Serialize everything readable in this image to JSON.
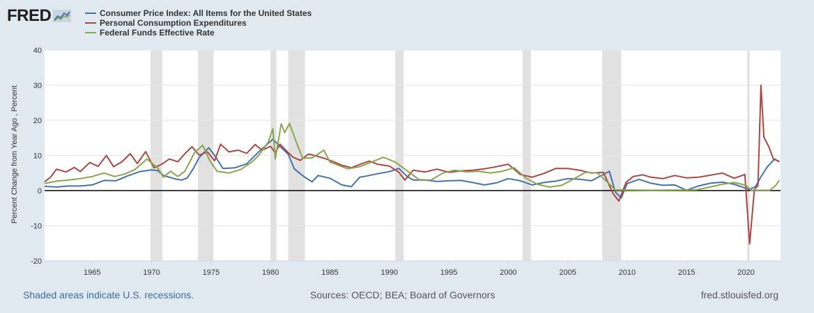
{
  "logo": {
    "text": "FRED"
  },
  "legend": {
    "items": [
      {
        "label": "Consumer Price Index: All Items for the United States",
        "color": "#4572a7"
      },
      {
        "label": "Personal Consumption Expenditures",
        "color": "#aa4643"
      },
      {
        "label": "Federal Funds Effective Rate",
        "color": "#89a54e"
      }
    ]
  },
  "footer": {
    "recessions_note": "Shaded areas indicate U.S. recessions.",
    "sources": "Sources: OECD; BEA; Board of Governors",
    "site": "fred.stlouisfed.org"
  },
  "chart_data": {
    "type": "line",
    "ylabel": "Percent Change from Year Ago , Percent",
    "xlim": [
      1961.0,
      2022.9
    ],
    "ylim": [
      -20,
      40
    ],
    "yticks": [
      -20,
      -10,
      0,
      10,
      20,
      30,
      40
    ],
    "xticks": [
      1965,
      1970,
      1975,
      1980,
      1985,
      1990,
      1995,
      2000,
      2005,
      2010,
      2015,
      2020
    ],
    "zero_line": true,
    "grid": "horizontal",
    "recessions": [
      [
        1969.9,
        1970.9
      ],
      [
        1973.9,
        1975.2
      ],
      [
        1980.0,
        1980.5
      ],
      [
        1981.5,
        1982.9
      ],
      [
        1990.5,
        1991.2
      ],
      [
        2001.2,
        2001.9
      ],
      [
        2007.9,
        2009.5
      ],
      [
        2020.1,
        2020.3
      ]
    ],
    "series": [
      {
        "name": "Consumer Price Index: All Items for the United States",
        "color": "#4572a7",
        "points": [
          [
            1961.0,
            1.2
          ],
          [
            1962.0,
            1.0
          ],
          [
            1963.0,
            1.3
          ],
          [
            1964.0,
            1.3
          ],
          [
            1965.0,
            1.6
          ],
          [
            1966.0,
            2.9
          ],
          [
            1967.0,
            2.8
          ],
          [
            1968.0,
            4.2
          ],
          [
            1969.0,
            5.4
          ],
          [
            1970.0,
            5.9
          ],
          [
            1970.5,
            5.7
          ],
          [
            1971.0,
            4.3
          ],
          [
            1972.0,
            3.3
          ],
          [
            1972.5,
            3.0
          ],
          [
            1973.0,
            3.6
          ],
          [
            1973.5,
            6.2
          ],
          [
            1974.0,
            9.4
          ],
          [
            1974.8,
            12.2
          ],
          [
            1975.3,
            10.0
          ],
          [
            1976.0,
            6.3
          ],
          [
            1977.0,
            6.5
          ],
          [
            1978.0,
            7.6
          ],
          [
            1979.0,
            11.0
          ],
          [
            1980.2,
            14.6
          ],
          [
            1980.8,
            12.6
          ],
          [
            1981.5,
            10.3
          ],
          [
            1982.0,
            6.2
          ],
          [
            1982.8,
            4.0
          ],
          [
            1983.5,
            2.5
          ],
          [
            1984.0,
            4.3
          ],
          [
            1985.0,
            3.5
          ],
          [
            1986.0,
            1.6
          ],
          [
            1986.8,
            1.1
          ],
          [
            1987.5,
            3.8
          ],
          [
            1988.0,
            4.1
          ],
          [
            1989.0,
            4.8
          ],
          [
            1990.0,
            5.4
          ],
          [
            1990.8,
            6.3
          ],
          [
            1991.5,
            4.0
          ],
          [
            1992.0,
            3.0
          ],
          [
            1993.0,
            3.0
          ],
          [
            1994.0,
            2.6
          ],
          [
            1995.0,
            2.8
          ],
          [
            1996.0,
            2.9
          ],
          [
            1997.0,
            2.3
          ],
          [
            1998.0,
            1.6
          ],
          [
            1999.0,
            2.2
          ],
          [
            2000.0,
            3.4
          ],
          [
            2001.0,
            2.8
          ],
          [
            2002.0,
            1.6
          ],
          [
            2003.0,
            2.3
          ],
          [
            2004.0,
            2.7
          ],
          [
            2005.0,
            3.4
          ],
          [
            2006.0,
            3.2
          ],
          [
            2007.0,
            2.8
          ],
          [
            2008.5,
            5.5
          ],
          [
            2009.0,
            -0.4
          ],
          [
            2009.5,
            -2.1
          ],
          [
            2010.0,
            2.0
          ],
          [
            2011.0,
            3.2
          ],
          [
            2012.0,
            2.1
          ],
          [
            2013.0,
            1.5
          ],
          [
            2014.0,
            1.6
          ],
          [
            2015.0,
            0.1
          ],
          [
            2016.0,
            1.3
          ],
          [
            2017.0,
            2.1
          ],
          [
            2018.0,
            2.4
          ],
          [
            2019.0,
            1.8
          ],
          [
            2020.3,
            0.3
          ],
          [
            2020.8,
            1.2
          ],
          [
            2021.3,
            4.2
          ],
          [
            2021.8,
            6.8
          ],
          [
            2022.4,
            9.0
          ],
          [
            2022.8,
            8.2
          ]
        ]
      },
      {
        "name": "Personal Consumption Expenditures",
        "color": "#aa4643",
        "points": [
          [
            1961.0,
            2.5
          ],
          [
            1961.5,
            3.8
          ],
          [
            1962.0,
            6.1
          ],
          [
            1962.8,
            5.3
          ],
          [
            1963.5,
            6.6
          ],
          [
            1964.0,
            5.4
          ],
          [
            1964.8,
            8.0
          ],
          [
            1965.5,
            6.9
          ],
          [
            1966.2,
            10.0
          ],
          [
            1966.8,
            6.8
          ],
          [
            1967.5,
            8.2
          ],
          [
            1968.2,
            10.5
          ],
          [
            1968.8,
            7.7
          ],
          [
            1969.5,
            11.1
          ],
          [
            1970.2,
            6.5
          ],
          [
            1970.8,
            7.4
          ],
          [
            1971.5,
            9.0
          ],
          [
            1972.2,
            8.2
          ],
          [
            1972.8,
            10.5
          ],
          [
            1973.4,
            12.5
          ],
          [
            1974.0,
            10.1
          ],
          [
            1974.7,
            11.0
          ],
          [
            1975.3,
            8.5
          ],
          [
            1975.8,
            13.2
          ],
          [
            1976.5,
            11.0
          ],
          [
            1977.3,
            11.5
          ],
          [
            1978.0,
            10.6
          ],
          [
            1978.7,
            13.1
          ],
          [
            1979.3,
            11.5
          ],
          [
            1980.0,
            12.6
          ],
          [
            1980.4,
            10.8
          ],
          [
            1980.8,
            13.2
          ],
          [
            1981.4,
            11.1
          ],
          [
            1981.9,
            9.5
          ],
          [
            1982.5,
            8.6
          ],
          [
            1983.2,
            10.4
          ],
          [
            1983.9,
            9.8
          ],
          [
            1984.6,
            9.1
          ],
          [
            1985.3,
            8.2
          ],
          [
            1986.0,
            7.2
          ],
          [
            1986.8,
            6.5
          ],
          [
            1987.5,
            7.4
          ],
          [
            1988.3,
            8.4
          ],
          [
            1989.0,
            7.5
          ],
          [
            1990.0,
            7.0
          ],
          [
            1990.8,
            5.2
          ],
          [
            1991.3,
            3.0
          ],
          [
            1992.0,
            5.8
          ],
          [
            1993.0,
            5.3
          ],
          [
            1994.0,
            6.1
          ],
          [
            1995.0,
            5.2
          ],
          [
            1996.0,
            5.6
          ],
          [
            1997.0,
            5.8
          ],
          [
            1998.0,
            6.2
          ],
          [
            1999.0,
            6.8
          ],
          [
            2000.0,
            7.5
          ],
          [
            2001.0,
            4.6
          ],
          [
            2002.0,
            3.8
          ],
          [
            2003.0,
            4.9
          ],
          [
            2004.0,
            6.3
          ],
          [
            2005.0,
            6.3
          ],
          [
            2006.0,
            5.8
          ],
          [
            2007.0,
            5.0
          ],
          [
            2008.0,
            5.2
          ],
          [
            2008.8,
            -0.8
          ],
          [
            2009.3,
            -3.0
          ],
          [
            2009.9,
            2.3
          ],
          [
            2010.5,
            4.0
          ],
          [
            2011.3,
            4.5
          ],
          [
            2012.0,
            3.8
          ],
          [
            2013.0,
            3.4
          ],
          [
            2014.0,
            4.3
          ],
          [
            2015.0,
            3.6
          ],
          [
            2016.0,
            3.8
          ],
          [
            2017.0,
            4.4
          ],
          [
            2018.0,
            5.0
          ],
          [
            2019.0,
            3.5
          ],
          [
            2019.9,
            4.6
          ],
          [
            2020.3,
            -15.2
          ],
          [
            2020.7,
            0.3
          ],
          [
            2021.0,
            1.4
          ],
          [
            2021.25,
            30.0
          ],
          [
            2021.5,
            15.2
          ],
          [
            2021.9,
            12.6
          ],
          [
            2022.3,
            9.0
          ],
          [
            2022.8,
            8.3
          ]
        ]
      },
      {
        "name": "Federal Funds Effective Rate",
        "color": "#89a54e",
        "points": [
          [
            1961.0,
            2.0
          ],
          [
            1962.0,
            2.7
          ],
          [
            1963.0,
            3.0
          ],
          [
            1964.0,
            3.4
          ],
          [
            1965.0,
            4.0
          ],
          [
            1966.0,
            5.0
          ],
          [
            1966.9,
            4.0
          ],
          [
            1967.8,
            4.8
          ],
          [
            1968.6,
            6.0
          ],
          [
            1969.6,
            9.0
          ],
          [
            1970.5,
            6.5
          ],
          [
            1971.0,
            3.8
          ],
          [
            1971.6,
            5.5
          ],
          [
            1972.2,
            4.0
          ],
          [
            1972.8,
            5.5
          ],
          [
            1973.6,
            10.8
          ],
          [
            1974.3,
            12.9
          ],
          [
            1974.9,
            8.5
          ],
          [
            1975.5,
            5.5
          ],
          [
            1976.5,
            5.0
          ],
          [
            1977.5,
            6.0
          ],
          [
            1978.4,
            8.0
          ],
          [
            1979.0,
            10.0
          ],
          [
            1979.8,
            13.7
          ],
          [
            1980.2,
            17.6
          ],
          [
            1980.4,
            9.0
          ],
          [
            1980.9,
            19.0
          ],
          [
            1981.2,
            16.5
          ],
          [
            1981.6,
            19.1
          ],
          [
            1982.2,
            13.5
          ],
          [
            1982.7,
            9.2
          ],
          [
            1983.5,
            9.3
          ],
          [
            1984.5,
            11.5
          ],
          [
            1985.0,
            8.1
          ],
          [
            1986.5,
            6.2
          ],
          [
            1987.5,
            6.8
          ],
          [
            1988.5,
            8.1
          ],
          [
            1989.5,
            9.5
          ],
          [
            1990.5,
            8.1
          ],
          [
            1991.5,
            5.6
          ],
          [
            1992.5,
            3.1
          ],
          [
            1993.5,
            3.0
          ],
          [
            1994.5,
            5.0
          ],
          [
            1995.5,
            5.8
          ],
          [
            1996.5,
            5.3
          ],
          [
            1997.5,
            5.5
          ],
          [
            1998.5,
            5.0
          ],
          [
            1999.5,
            5.5
          ],
          [
            2000.5,
            6.5
          ],
          [
            2001.5,
            3.5
          ],
          [
            2002.5,
            1.7
          ],
          [
            2003.5,
            1.0
          ],
          [
            2004.5,
            1.5
          ],
          [
            2005.5,
            3.3
          ],
          [
            2006.5,
            5.2
          ],
          [
            2007.5,
            5.0
          ],
          [
            2008.5,
            1.9
          ],
          [
            2009.0,
            0.2
          ],
          [
            2012.0,
            0.1
          ],
          [
            2015.8,
            0.2
          ],
          [
            2017.0,
            1.0
          ],
          [
            2018.0,
            1.8
          ],
          [
            2019.0,
            2.3
          ],
          [
            2020.0,
            1.5
          ],
          [
            2020.4,
            0.1
          ],
          [
            2022.0,
            0.1
          ],
          [
            2022.5,
            1.5
          ],
          [
            2022.8,
            3.0
          ]
        ]
      }
    ]
  }
}
